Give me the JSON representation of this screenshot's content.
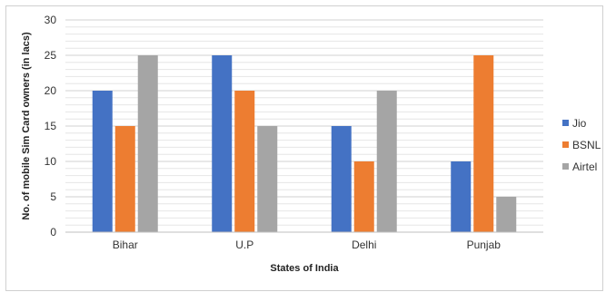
{
  "chart_data": {
    "type": "bar",
    "title": "",
    "xlabel": "States of India",
    "ylabel": "No. of mobile Sim Card owners (in lacs)",
    "categories": [
      "Bihar",
      "U.P",
      "Delhi",
      "Punjab"
    ],
    "series": [
      {
        "name": "Jio",
        "values": [
          20,
          25,
          15,
          10
        ],
        "color": "#4472C4"
      },
      {
        "name": "BSNL",
        "values": [
          15,
          20,
          10,
          25
        ],
        "color": "#ED7D31"
      },
      {
        "name": "Airtel",
        "values": [
          25,
          15,
          20,
          5
        ],
        "color": "#A5A5A5"
      }
    ],
    "ylim": [
      0,
      30
    ],
    "yticks": [
      0,
      5,
      10,
      15,
      20,
      25,
      30
    ],
    "grid": true,
    "legend_position": "right"
  }
}
